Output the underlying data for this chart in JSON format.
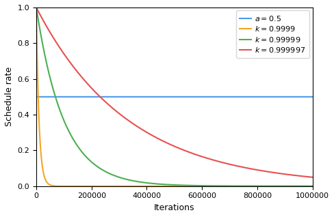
{
  "title": "",
  "xlabel": "Iterations",
  "ylabel": "Schedule rate",
  "xlim": [
    0,
    1000000
  ],
  "ylim": [
    0.0,
    1.0
  ],
  "alpha_constant": 0.5,
  "k_values": [
    0.9999,
    0.99999,
    0.999997
  ],
  "n_points": 5000,
  "legend_labels": [
    "$a = 0.5$",
    "$k = 0.9999$",
    "$k = 0.99999$",
    "$k = 0.999997$"
  ],
  "line_colors": [
    "#4c9be8",
    "#f5a623",
    "#4caf50",
    "#e85050"
  ],
  "xtick_labels": [
    "0",
    "200000",
    "400000",
    "600000",
    "800000",
    "1000000"
  ],
  "ytick_labels": [
    "0.0",
    "0.2",
    "0.4",
    "0.6",
    "0.8",
    "1.0"
  ],
  "label_fontsize": 9,
  "tick_fontsize": 8,
  "legend_fontsize": 8,
  "linewidth": 1.5
}
